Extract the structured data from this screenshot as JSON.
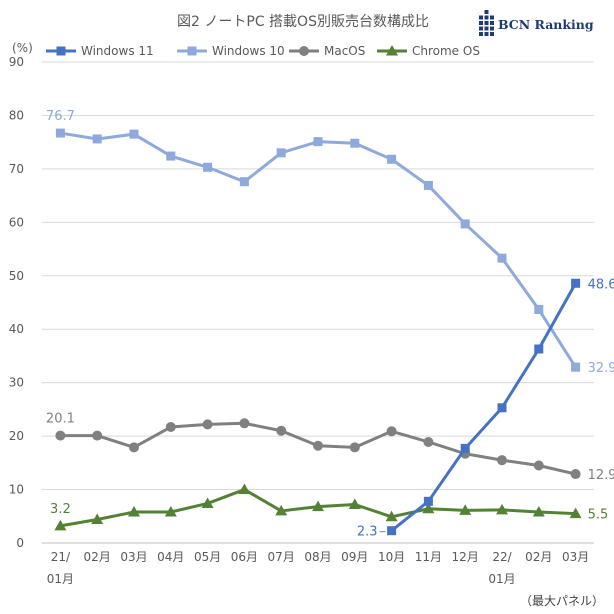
{
  "chart_data": {
    "type": "line",
    "title": "図2 ノートPC 搭載OS別販売台数構成比",
    "ylabel": "(%)",
    "ylim": [
      0,
      90
    ],
    "yticks": [
      0,
      10,
      20,
      30,
      40,
      50,
      60,
      70,
      80,
      90
    ],
    "grid": true,
    "legend_position": "top",
    "categories": [
      [
        "21/",
        "01月"
      ],
      [
        "02月"
      ],
      [
        "03月"
      ],
      [
        "04月"
      ],
      [
        "05月"
      ],
      [
        "06月"
      ],
      [
        "07月"
      ],
      [
        "08月"
      ],
      [
        "09月"
      ],
      [
        "10月"
      ],
      [
        "11月"
      ],
      [
        "12月"
      ],
      [
        "22/",
        "01月"
      ],
      [
        "02月"
      ],
      [
        "03月"
      ]
    ],
    "series": [
      {
        "name": "Windows 11",
        "color": "#4472C4",
        "marker": "square",
        "values": [
          null,
          null,
          null,
          null,
          null,
          null,
          null,
          null,
          null,
          2.3,
          7.8,
          17.7,
          25.3,
          36.3,
          48.6
        ],
        "labels": [
          {
            "index": 9,
            "text": "2.3",
            "pos": "left"
          },
          {
            "index": 14,
            "text": "48.6",
            "pos": "right"
          }
        ]
      },
      {
        "name": "Windows 10",
        "color": "#8EA9DB",
        "marker": "square",
        "values": [
          76.7,
          75.6,
          76.5,
          72.4,
          70.3,
          67.6,
          73.0,
          75.1,
          74.8,
          71.8,
          66.9,
          59.7,
          53.3,
          43.7,
          32.9
        ],
        "labels": [
          {
            "index": 0,
            "text": "76.7",
            "pos": "above"
          },
          {
            "index": 14,
            "text": "32.9",
            "pos": "right"
          }
        ]
      },
      {
        "name": "MacOS",
        "color": "#808080",
        "marker": "circle",
        "values": [
          20.1,
          20.1,
          17.9,
          21.7,
          22.2,
          22.4,
          21.0,
          18.2,
          17.9,
          20.9,
          18.9,
          16.7,
          15.5,
          14.5,
          12.9
        ],
        "labels": [
          {
            "index": 0,
            "text": "20.1",
            "pos": "above"
          },
          {
            "index": 14,
            "text": "12.9",
            "pos": "right"
          }
        ]
      },
      {
        "name": "Chrome OS",
        "color": "#548235",
        "marker": "triangle",
        "values": [
          3.2,
          4.4,
          5.8,
          5.8,
          7.4,
          10.0,
          6.0,
          6.8,
          7.2,
          4.9,
          6.4,
          6.1,
          6.2,
          5.8,
          5.5
        ],
        "labels": [
          {
            "index": 0,
            "text": "3.2",
            "pos": "above"
          },
          {
            "index": 14,
            "text": "5.5",
            "pos": "right"
          }
        ]
      }
    ]
  },
  "unit_label": "(%)",
  "footnote": "（最大パネル）",
  "logo": {
    "text": "BCN Ranking",
    "color": "#1F3B73"
  }
}
